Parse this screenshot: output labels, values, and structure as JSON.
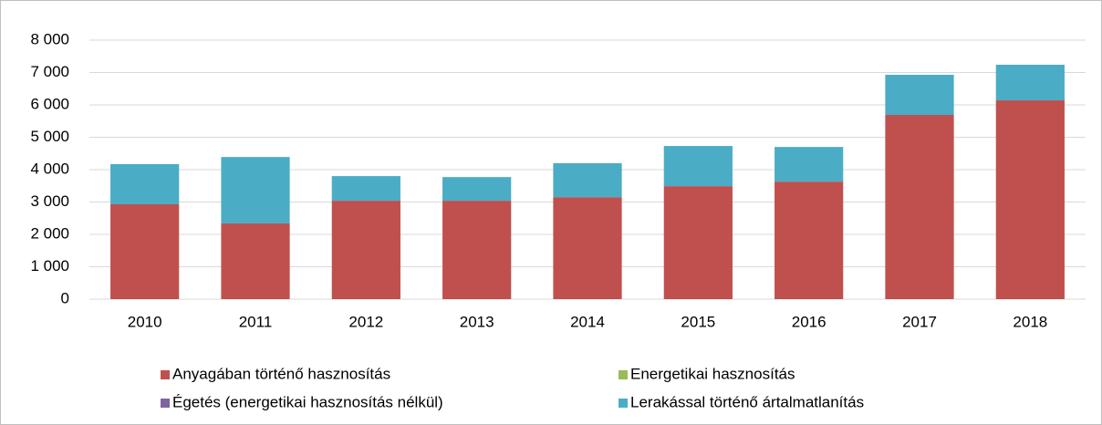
{
  "chart_data": {
    "type": "stacked_bar",
    "categories": [
      "2010",
      "2011",
      "2012",
      "2013",
      "2014",
      "2015",
      "2016",
      "2017",
      "2018"
    ],
    "series": [
      {
        "name": "Anyagában történő hasznosítás",
        "color": "#c0504d",
        "values": [
          2930,
          2340,
          3040,
          3040,
          3150,
          3490,
          3630,
          5690,
          6140
        ]
      },
      {
        "name": "Energetikai hasznosítás",
        "color": "#9bbb59",
        "values": [
          0,
          0,
          0,
          0,
          0,
          0,
          0,
          0,
          0
        ]
      },
      {
        "name": "Égetés (energetikai hasznosítás nélkül)",
        "color": "#8064a2",
        "values": [
          0,
          0,
          0,
          0,
          0,
          0,
          0,
          0,
          0
        ]
      },
      {
        "name": "Lerakással történő ártalmatlanítás",
        "color": "#4bacc6",
        "values": [
          1240,
          2050,
          760,
          730,
          1050,
          1240,
          1070,
          1240,
          1100
        ]
      }
    ],
    "ylim": [
      0,
      8000
    ],
    "yticks": [
      0,
      {
        "value": 1000,
        "label": "1 000"
      },
      {
        "value": 2000,
        "label": "2 000"
      },
      {
        "value": 3000,
        "label": "3 000"
      },
      {
        "value": 4000,
        "label": "4 000"
      },
      {
        "value": 5000,
        "label": "5 000"
      },
      {
        "value": 6000,
        "label": "6 000"
      },
      {
        "value": 7000,
        "label": "7 000"
      },
      {
        "value": 8000,
        "label": "8 000"
      }
    ],
    "grid": true
  }
}
